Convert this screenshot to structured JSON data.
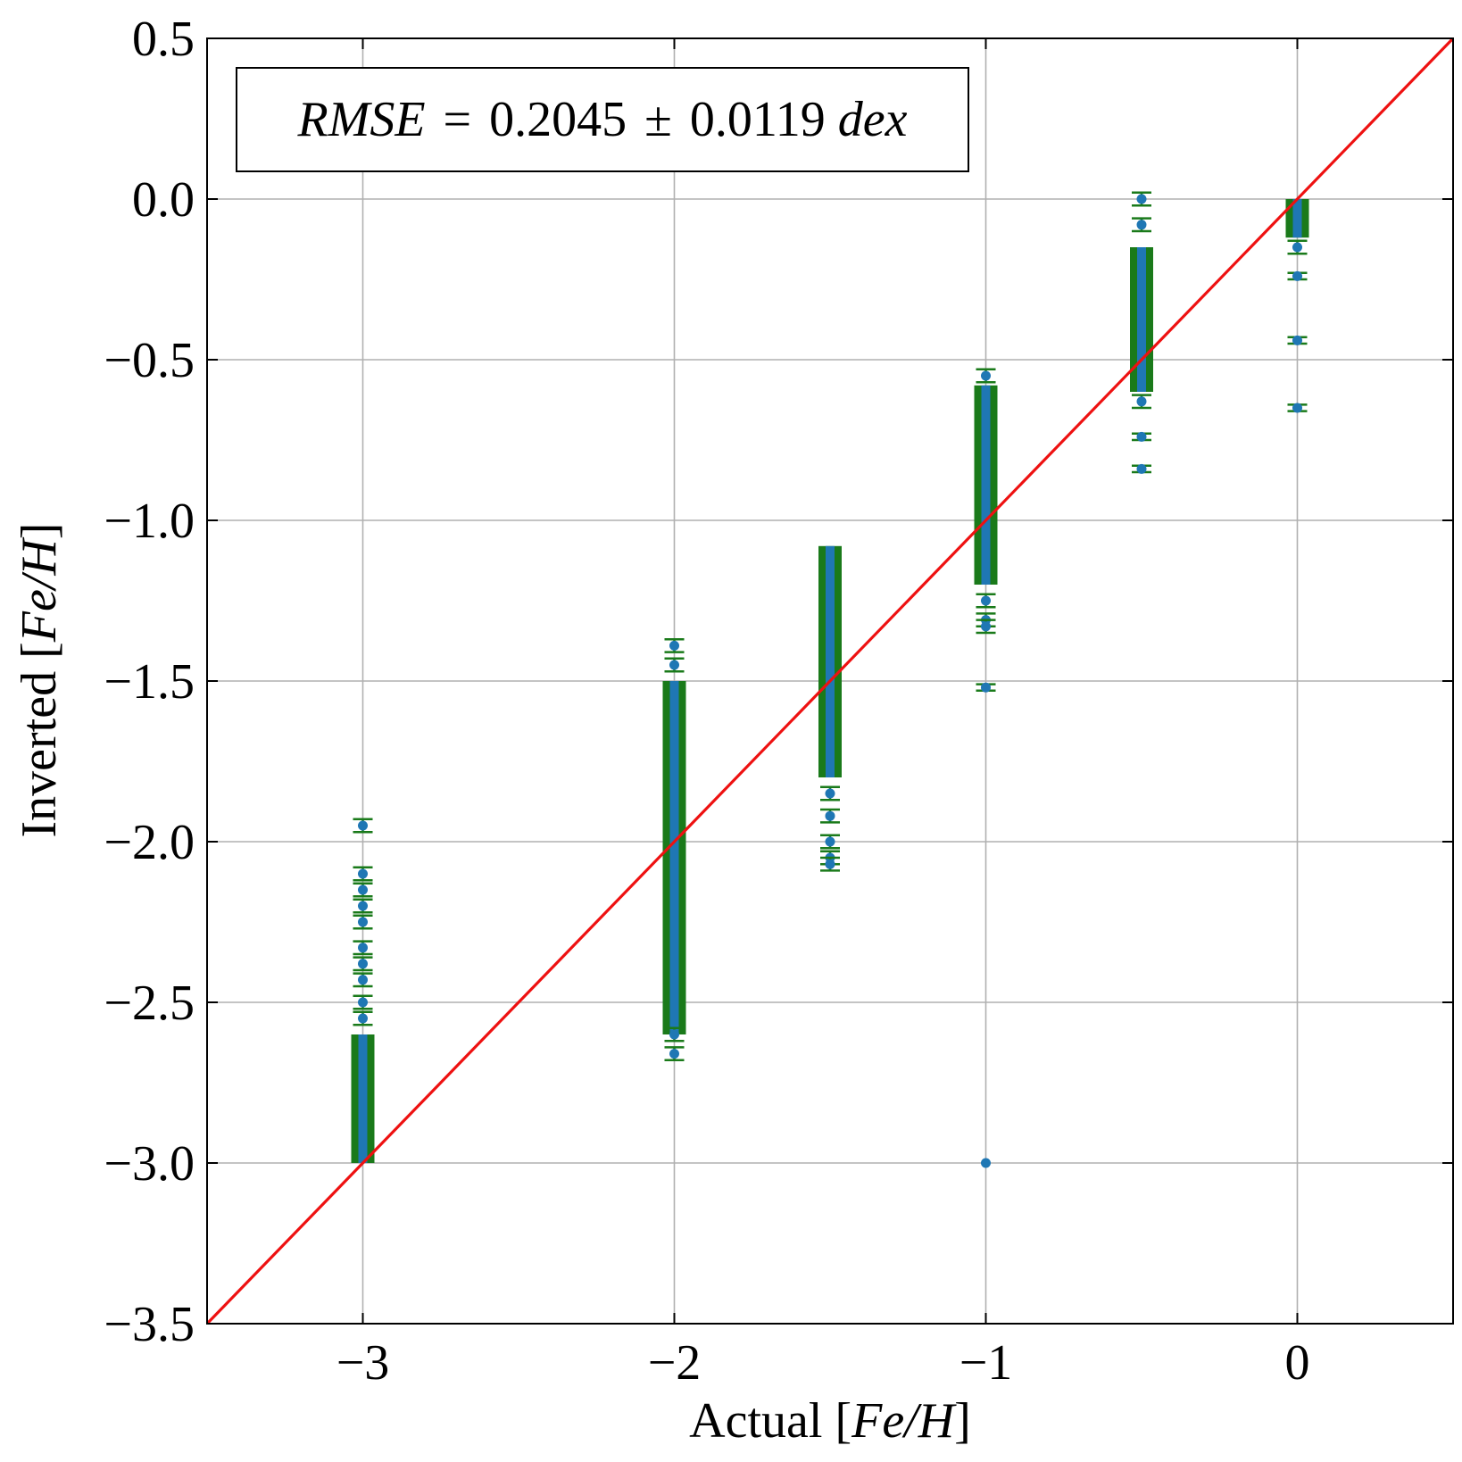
{
  "chart_data": {
    "type": "scatter",
    "title": "",
    "xlabel": "Actual [Fe/H]",
    "ylabel": "Inverted [Fe/H]",
    "xlabel_parts": {
      "plain": "Actual ",
      "italic": "Fe/H"
    },
    "ylabel_parts": {
      "plain": "Inverted ",
      "italic": "Fe/H"
    },
    "xlim": [
      -3.5,
      0.5
    ],
    "ylim": [
      -3.5,
      0.5
    ],
    "x_ticks": [
      -3,
      -2,
      -1,
      0
    ],
    "x_tick_labels": [
      "−3",
      "−2",
      "−1",
      "0"
    ],
    "y_ticks": [
      0.5,
      0.0,
      -0.5,
      -1.0,
      -1.5,
      -2.0,
      -2.5,
      -3.0,
      -3.5
    ],
    "y_tick_labels": [
      "0.5",
      "0.0",
      "−0.5",
      "−1.0",
      "−1.5",
      "−2.0",
      "−2.5",
      "−3.0",
      "−3.5"
    ],
    "grid": true,
    "annotation": "RMSE = 0.2045 ± 0.0119dex",
    "annotation_parts": {
      "metric": "RMSE",
      "eq": "=",
      "value": "0.2045",
      "pm": "±",
      "err": "0.0119",
      "unit": "dex"
    },
    "identity_line": {
      "color": "#ee1111",
      "from": [
        -3.5,
        -3.5
      ],
      "to": [
        0.5,
        0.5
      ]
    },
    "colors": {
      "points": "#1f77b4",
      "errorbars": "#1a7a1a",
      "line": "#ee1111"
    },
    "dense_columns": [
      {
        "x": -3.0,
        "y_min": -3.0,
        "y_max": -2.6
      },
      {
        "x": -2.0,
        "y_min": -2.6,
        "y_max": -1.5
      },
      {
        "x": -1.5,
        "y_min": -1.8,
        "y_max": -1.08
      },
      {
        "x": -1.0,
        "y_min": -1.2,
        "y_max": -0.58
      },
      {
        "x": -0.5,
        "y_min": -0.6,
        "y_max": -0.15
      },
      {
        "x": 0.0,
        "y_min": -0.12,
        "y_max": 0.0
      }
    ],
    "points": [
      {
        "x": -3.0,
        "y": -1.95,
        "err": 0.02
      },
      {
        "x": -3.0,
        "y": -2.1,
        "err": 0.02
      },
      {
        "x": -3.0,
        "y": -2.15,
        "err": 0.02
      },
      {
        "x": -3.0,
        "y": -2.2,
        "err": 0.02
      },
      {
        "x": -3.0,
        "y": -2.25,
        "err": 0.02
      },
      {
        "x": -3.0,
        "y": -2.33,
        "err": 0.02
      },
      {
        "x": -3.0,
        "y": -2.38,
        "err": 0.02
      },
      {
        "x": -3.0,
        "y": -2.43,
        "err": 0.02
      },
      {
        "x": -3.0,
        "y": -2.5,
        "err": 0.02
      },
      {
        "x": -3.0,
        "y": -2.55,
        "err": 0.02
      },
      {
        "x": -2.0,
        "y": -1.39,
        "err": 0.02
      },
      {
        "x": -2.0,
        "y": -1.45,
        "err": 0.02
      },
      {
        "x": -2.0,
        "y": -2.6,
        "err": 0.02
      },
      {
        "x": -2.0,
        "y": -2.66,
        "err": 0.02
      },
      {
        "x": -1.5,
        "y": -1.85,
        "err": 0.02
      },
      {
        "x": -1.5,
        "y": -1.92,
        "err": 0.02
      },
      {
        "x": -1.5,
        "y": -2.0,
        "err": 0.02
      },
      {
        "x": -1.5,
        "y": -2.05,
        "err": 0.02
      },
      {
        "x": -1.5,
        "y": -2.07,
        "err": 0.02
      },
      {
        "x": -1.0,
        "y": -0.55,
        "err": 0.02
      },
      {
        "x": -1.0,
        "y": -1.25,
        "err": 0.02
      },
      {
        "x": -1.0,
        "y": -1.31,
        "err": 0.02
      },
      {
        "x": -1.0,
        "y": -1.33,
        "err": 0.02
      },
      {
        "x": -1.0,
        "y": -1.52,
        "err": 0.01
      },
      {
        "x": -1.0,
        "y": -3.0,
        "err": 0.0
      },
      {
        "x": -0.5,
        "y": 0.0,
        "err": 0.02
      },
      {
        "x": -0.5,
        "y": -0.08,
        "err": 0.02
      },
      {
        "x": -0.5,
        "y": -0.63,
        "err": 0.02
      },
      {
        "x": -0.5,
        "y": -0.74,
        "err": 0.01
      },
      {
        "x": -0.5,
        "y": -0.84,
        "err": 0.01
      },
      {
        "x": 0.0,
        "y": -0.15,
        "err": 0.02
      },
      {
        "x": 0.0,
        "y": -0.24,
        "err": 0.01
      },
      {
        "x": 0.0,
        "y": -0.44,
        "err": 0.01
      },
      {
        "x": 0.0,
        "y": -0.65,
        "err": 0.01
      }
    ]
  }
}
